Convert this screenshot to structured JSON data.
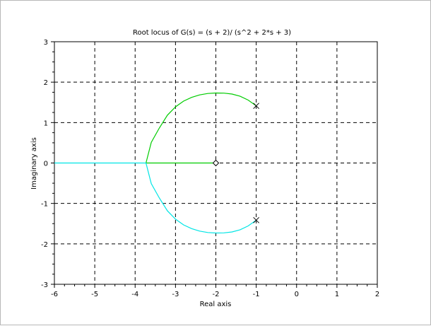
{
  "chart_data": {
    "type": "line",
    "title": "Root locus of G(s) = (s + 2)/ (s^2 + 2*s + 3)",
    "xlabel": "Real axis",
    "ylabel": "Imaginary axis",
    "xlim": [
      -6,
      2
    ],
    "ylim": [
      -3,
      3
    ],
    "xticks": [
      -6,
      -5,
      -4,
      -3,
      -2,
      -1,
      0,
      1,
      2
    ],
    "yticks": [
      -3,
      -2,
      -1,
      0,
      1,
      2,
      3
    ],
    "grid": true,
    "colors": {
      "branch_upper": "#00cc00",
      "branch_lower": "#00e5e5",
      "marker": "#000000"
    },
    "series": [
      {
        "x": [
          -1,
          -1.2,
          -1.4,
          -1.6,
          -1.8,
          -2.0,
          -2.2,
          -2.4,
          -2.6,
          -2.8,
          -3.0,
          -3.2,
          -3.4,
          -3.6,
          -3.732,
          -3.6,
          -3.4,
          -3.2,
          -3.0,
          -2.8,
          -2.6,
          -2.4,
          -2.2,
          -2.0
        ],
        "y": [
          1.414,
          1.556,
          1.652,
          1.706,
          1.728,
          1.732,
          1.72,
          1.685,
          1.624,
          1.53,
          1.389,
          1.183,
          0.866,
          0.51,
          0,
          0,
          0,
          0,
          0,
          0,
          0,
          0,
          0,
          0
        ]
      },
      {
        "x": [
          -1,
          -1.2,
          -1.4,
          -1.6,
          -1.8,
          -2.0,
          -2.2,
          -2.4,
          -2.6,
          -2.8,
          -3.0,
          -3.2,
          -3.4,
          -3.6,
          -3.732,
          -3.9,
          -4.2,
          -4.6,
          -5.0,
          -5.5,
          -6.0
        ],
        "y": [
          -1.414,
          -1.556,
          -1.652,
          -1.706,
          -1.728,
          -1.732,
          -1.72,
          -1.685,
          -1.624,
          -1.53,
          -1.389,
          -1.183,
          -0.866,
          -0.51,
          0,
          0,
          0,
          0,
          0,
          0,
          0
        ]
      }
    ],
    "poles": [
      {
        "x": -1,
        "y": 1.414
      },
      {
        "x": -1,
        "y": -1.414
      }
    ],
    "zeros": [
      {
        "x": -2,
        "y": 0
      }
    ]
  }
}
